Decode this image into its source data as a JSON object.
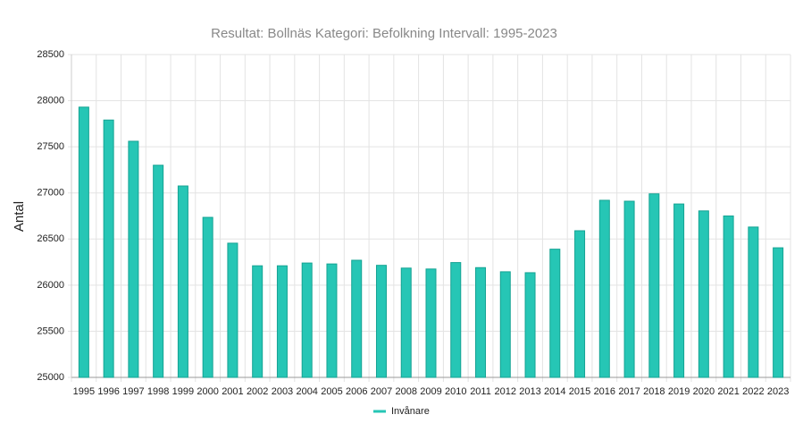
{
  "chart_data": {
    "type": "bar",
    "title": "Resultat: Bollnäs Kategori: Befolkning Intervall: 1995-2023",
    "y_label": "Antal",
    "categories": [
      "1995",
      "1996",
      "1997",
      "1998",
      "1999",
      "2000",
      "2001",
      "2002",
      "2003",
      "2004",
      "2005",
      "2006",
      "2007",
      "2008",
      "2009",
      "2010",
      "2011",
      "2012",
      "2013",
      "2014",
      "2015",
      "2016",
      "2017",
      "2018",
      "2019",
      "2020",
      "2021",
      "2022",
      "2023"
    ],
    "series": [
      {
        "name": "Invånare",
        "color": "#26c6b5",
        "values": [
          27930,
          27790,
          27560,
          27300,
          27075,
          26735,
          26455,
          26210,
          26210,
          26240,
          26230,
          26270,
          26215,
          26185,
          26175,
          26245,
          26190,
          26145,
          26135,
          26390,
          26590,
          26920,
          26910,
          26990,
          26880,
          26805,
          26750,
          26630,
          26405
        ]
      }
    ],
    "ylim": [
      25000,
      28500
    ],
    "yticks": [
      25000,
      25500,
      26000,
      26500,
      27000,
      27500,
      28000,
      28500
    ],
    "grid": true,
    "legend": "bottom"
  }
}
